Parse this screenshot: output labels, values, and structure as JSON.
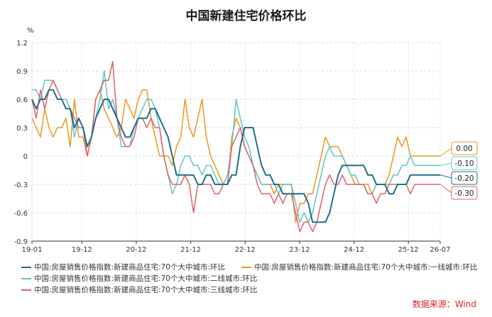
{
  "title": "中国新建住宅价格环比",
  "unit": "%",
  "source": "数据来源：Wind",
  "chart_data": {
    "type": "line",
    "title": "中国新建住宅价格环比",
    "ylabel": "%",
    "ylim": [
      -0.9,
      1.2
    ],
    "yticks": [
      "1.2",
      "0.9",
      "0.6",
      "0.3",
      "0",
      "-0.3",
      "-0.6",
      "-0.9"
    ],
    "xticks": [
      "19-01",
      "19-12",
      "20-12",
      "21-12",
      "22-12",
      "23-12",
      "24-12",
      "25-12",
      "26-07"
    ],
    "x_start": "19-01",
    "x_end": "26-07",
    "grid": true,
    "legend_placement": "bottom",
    "series": [
      {
        "name": "中国:房屋销售价格指数:新建商品住宅:70个大中城市:环比",
        "color": "#1f6e8c",
        "end_label": "-0.20",
        "values": [
          0.6,
          0.5,
          0.6,
          0.6,
          0.7,
          0.7,
          0.6,
          0.6,
          0.5,
          0.5,
          0.3,
          0.4,
          0.3,
          0.1,
          0.2,
          0.4,
          0.5,
          0.6,
          0.6,
          0.5,
          0.4,
          0.3,
          0.2,
          0.2,
          0.3,
          0.4,
          0.4,
          0.4,
          0.5,
          0.5,
          0.4,
          0.3,
          0.2,
          0.0,
          -0.2,
          -0.2,
          -0.2,
          -0.2,
          -0.2,
          -0.3,
          -0.3,
          -0.2,
          -0.2,
          -0.3,
          -0.3,
          -0.3,
          -0.3,
          -0.2,
          -0.2,
          0.1,
          0.3,
          0.3,
          0.3,
          0.1,
          -0.1,
          -0.2,
          -0.2,
          -0.3,
          -0.3,
          -0.4,
          -0.4,
          -0.4,
          -0.4,
          -0.4,
          -0.4,
          -0.5,
          -0.7,
          -0.7,
          -0.7,
          -0.7,
          -0.6,
          -0.4,
          -0.2,
          -0.1,
          -0.1,
          -0.1,
          -0.1,
          -0.1,
          -0.1,
          -0.2,
          -0.2,
          -0.3,
          -0.3,
          -0.3,
          -0.4,
          -0.4,
          -0.3,
          -0.3,
          -0.3,
          -0.2,
          -0.2,
          -0.2,
          -0.2,
          -0.2,
          -0.2,
          -0.2,
          -0.2
        ]
      },
      {
        "name": "中国:房屋销售价格指数:新建商品住宅:70个大中城市:一线城市:环比",
        "color": "#f0961e",
        "end_label": "0.00",
        "values": [
          0.4,
          0.3,
          0.2,
          0.5,
          0.3,
          0.2,
          0.3,
          0.3,
          0.4,
          0.1,
          0.6,
          0.2,
          0.2,
          0.0,
          0.2,
          0.6,
          0.7,
          0.5,
          0.4,
          0.3,
          0.2,
          0.3,
          0.6,
          0.5,
          0.4,
          0.6,
          0.7,
          0.7,
          0.4,
          0.2,
          0.0,
          0.0,
          0.0,
          -0.1,
          0.1,
          0.2,
          0.6,
          0.3,
          0.2,
          0.4,
          0.6,
          0.2,
          0.0,
          -0.1,
          -0.2,
          -0.3,
          -0.3,
          0.2,
          0.4,
          0.3,
          0.1,
          0.0,
          -0.1,
          -0.2,
          -0.3,
          -0.3,
          -0.3,
          -0.4,
          -0.3,
          -0.3,
          -0.3,
          -0.3,
          -0.7,
          -0.5,
          -0.5,
          -0.4,
          -0.4,
          -0.2,
          0.0,
          0.2,
          0.1,
          0.1,
          0.1,
          0.0,
          -0.1,
          -0.2,
          -0.3,
          -0.3,
          -0.3,
          -0.3,
          -0.4,
          -0.3,
          -0.3,
          -0.3,
          -0.2,
          0.0,
          0.2,
          0.1,
          0.2,
          0.0,
          0.0,
          0.0,
          0.0,
          0.0,
          0.0,
          0.0,
          0.0
        ]
      },
      {
        "name": "中国:房屋销售价格指数:新建商品住宅:70个大中城市:二线城市:环比",
        "color": "#5ec6c4",
        "end_label": "-0.10",
        "values": [
          0.7,
          0.7,
          0.6,
          0.8,
          0.8,
          0.8,
          0.7,
          0.6,
          0.6,
          0.5,
          0.2,
          0.4,
          0.3,
          0.1,
          0.2,
          0.4,
          0.6,
          0.9,
          0.5,
          0.6,
          0.4,
          0.1,
          0.1,
          0.1,
          0.3,
          0.4,
          0.5,
          0.6,
          0.6,
          0.5,
          0.3,
          0.0,
          -0.2,
          -0.4,
          -0.3,
          -0.1,
          0.0,
          0.0,
          -0.1,
          -0.1,
          -0.2,
          -0.1,
          -0.1,
          -0.2,
          -0.3,
          -0.3,
          -0.2,
          0.1,
          0.6,
          0.4,
          0.2,
          0.1,
          -0.1,
          -0.2,
          -0.3,
          -0.3,
          -0.3,
          -0.3,
          -0.4,
          -0.3,
          -0.3,
          -0.3,
          -0.5,
          -0.7,
          -0.6,
          -0.7,
          -0.6,
          -0.4,
          -0.2,
          0.0,
          0.1,
          0.0,
          0.0,
          0.0,
          -0.1,
          -0.2,
          -0.2,
          -0.3,
          -0.3,
          -0.4,
          -0.4,
          -0.3,
          -0.3,
          -0.3,
          -0.3,
          -0.2,
          -0.2,
          -0.1,
          -0.1,
          0.0,
          -0.1,
          -0.1,
          -0.1,
          -0.1,
          -0.1,
          -0.1,
          -0.1
        ]
      },
      {
        "name": "中国:房屋销售价格指数:新建商品住宅:70个大中城市:三线城市:环比",
        "color": "#e0606a",
        "end_label": "-0.30",
        "values": [
          0.6,
          0.4,
          0.7,
          0.5,
          0.7,
          0.8,
          0.7,
          0.6,
          0.5,
          0.5,
          0.4,
          0.3,
          0.3,
          0.0,
          0.2,
          0.6,
          0.7,
          0.8,
          0.8,
          1.0,
          0.4,
          0.2,
          0.1,
          0.1,
          0.2,
          0.4,
          0.4,
          0.3,
          0.4,
          0.3,
          0.3,
          0.0,
          -0.2,
          -0.3,
          -0.3,
          -0.3,
          -0.2,
          -0.3,
          -0.6,
          -0.3,
          -0.3,
          -0.3,
          -0.3,
          -0.4,
          -0.4,
          -0.3,
          -0.3,
          0.1,
          0.2,
          0.3,
          0.1,
          0.0,
          -0.1,
          -0.3,
          -0.4,
          -0.4,
          -0.4,
          -0.5,
          -0.4,
          -0.5,
          -0.4,
          -0.4,
          -0.6,
          -0.8,
          -0.7,
          -0.7,
          -0.8,
          -0.7,
          -0.5,
          -0.3,
          -0.2,
          -0.3,
          -0.3,
          -0.2,
          -0.3,
          -0.3,
          -0.3,
          -0.3,
          -0.3,
          -0.4,
          -0.4,
          -0.5,
          -0.4,
          -0.4,
          -0.3,
          -0.3,
          -0.3,
          -0.3,
          -0.3,
          -0.4,
          -0.3,
          -0.3,
          -0.3,
          -0.3,
          -0.3,
          -0.3,
          -0.3
        ]
      }
    ]
  }
}
